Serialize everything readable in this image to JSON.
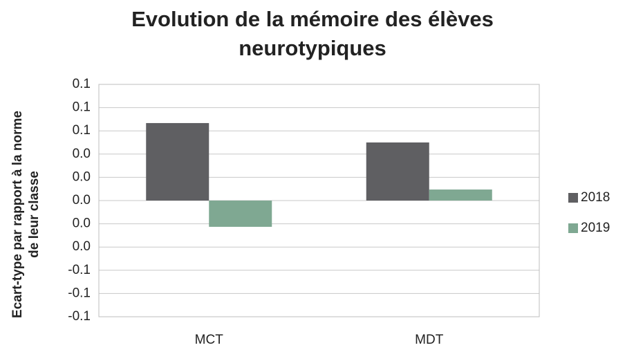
{
  "chart_data": {
    "type": "bar",
    "title": [
      "Evolution de la mémoire des élèves",
      "neurotypiques"
    ],
    "y_label": [
      "Ecart-type par rapport à la norme",
      "de leur classe"
    ],
    "categories": [
      "MCT",
      "MDT"
    ],
    "series": [
      {
        "name": "2018",
        "color": "#5f5f62",
        "values": [
          0.0667,
          0.05
        ]
      },
      {
        "name": "2019",
        "color": "#7fa892",
        "values": [
          -0.0226,
          0.0095
        ]
      }
    ],
    "ylim": [
      -0.1,
      0.1
    ],
    "yticks": [
      -0.1,
      {
        "value": -0.08,
        "label": "-0.1"
      },
      {
        "value": -0.06,
        "label": "-0.1"
      },
      {
        "value": -0.04,
        "label": "0.0"
      },
      {
        "value": -0.02,
        "label": "0.0"
      },
      {
        "value": 0,
        "label": "0.0"
      },
      {
        "value": 0.02,
        "label": "0.0"
      },
      {
        "value": 0.04,
        "label": "0.0"
      },
      {
        "value": 0.06,
        "label": "0.1"
      },
      {
        "value": 0.08,
        "label": "0.1"
      },
      0.1
    ],
    "grid": true,
    "legend": "right"
  }
}
